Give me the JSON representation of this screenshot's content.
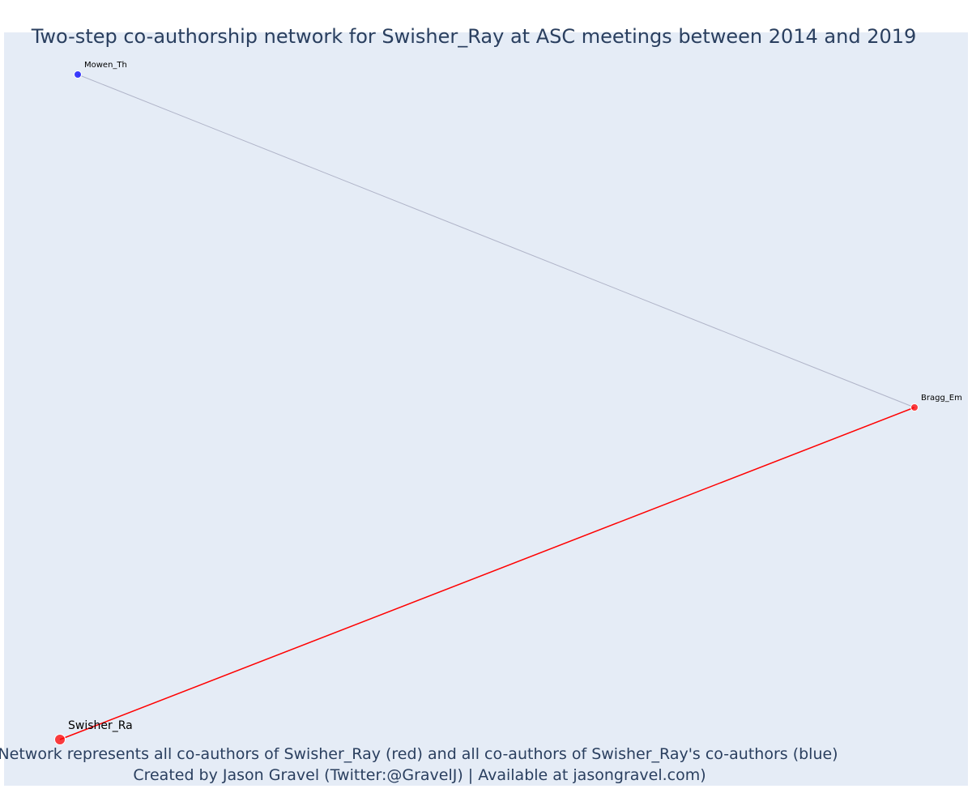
{
  "title": "Two-step co-authorship network for Swisher_Ray at ASC meetings between 2014 and 2019",
  "caption": {
    "line1": "Network represents all co-authors of Swisher_Ray (red) and all co-authors of Swisher_Ray's co-authors (blue)",
    "line2": "Created by Jason Gravel (Twitter:@GravelJ) | Available at jasongravel.com)"
  },
  "colors": {
    "plot_background": "#e5ecf6",
    "first_step": "#ff0000",
    "second_step": "#0000ff",
    "second_step_edge": "#b0b4c8",
    "text": "#2a3f5f"
  },
  "nodes": [
    {
      "id": "swisher",
      "label": "Swisher_Ra",
      "group": "ego"
    },
    {
      "id": "bragg",
      "label": "Bragg_Em",
      "group": "co-author"
    },
    {
      "id": "mowen",
      "label": "Mowen_Th",
      "group": "co-author-of-co-author"
    }
  ],
  "edges": [
    {
      "source": "swisher",
      "target": "bragg",
      "type": "first-step"
    },
    {
      "source": "bragg",
      "target": "mowen",
      "type": "second-step"
    }
  ]
}
